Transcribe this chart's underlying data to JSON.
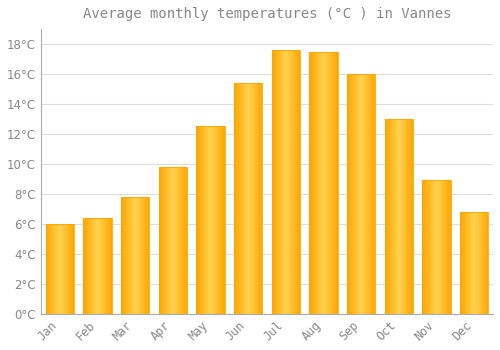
{
  "title": "Average monthly temperatures (°C ) in Vannes",
  "months": [
    "Jan",
    "Feb",
    "Mar",
    "Apr",
    "May",
    "Jun",
    "Jul",
    "Aug",
    "Sep",
    "Oct",
    "Nov",
    "Dec"
  ],
  "values": [
    6.0,
    6.4,
    7.8,
    9.8,
    12.5,
    15.4,
    17.6,
    17.5,
    16.0,
    13.0,
    8.9,
    6.8
  ],
  "bar_color_center": "#FFD050",
  "bar_color_edge": "#FFA500",
  "background_color": "#FFFFFF",
  "plot_bg_color": "#FFFFFF",
  "grid_color": "#DDDDDD",
  "text_color": "#888888",
  "spine_color": "#AAAAAA",
  "ylim": [
    0,
    19
  ],
  "yticks": [
    0,
    2,
    4,
    6,
    8,
    10,
    12,
    14,
    16,
    18
  ],
  "title_fontsize": 10,
  "tick_fontsize": 8.5
}
